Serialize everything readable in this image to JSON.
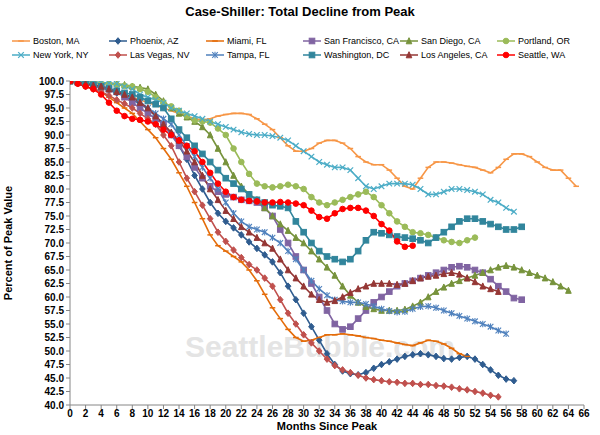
{
  "chart_data": {
    "type": "line",
    "title": "Case-Shiller: Total Decline from Peak",
    "x_label": "Months Since Peak",
    "y_label": "Percent of Peak Value",
    "annotations": [
      {
        "text": "SeattleBubble.com"
      }
    ],
    "grid": false,
    "legend": "top",
    "x": [
      0,
      1,
      2,
      3,
      4,
      5,
      6,
      7,
      8,
      9,
      10,
      11,
      12,
      13,
      14,
      15,
      16,
      17,
      18,
      19,
      20,
      21,
      22,
      23,
      24,
      25,
      26,
      27,
      28,
      29,
      30,
      31,
      32,
      33,
      34,
      35,
      36,
      37,
      38,
      39,
      40,
      41,
      42,
      43,
      44,
      45,
      46,
      47,
      48,
      49,
      50,
      51,
      52,
      53,
      54,
      55,
      56,
      57,
      58,
      59,
      60,
      61,
      62,
      63,
      64,
      65
    ],
    "xlim": [
      0,
      66
    ],
    "xticks": [
      0,
      2,
      4,
      6,
      8,
      10,
      12,
      14,
      16,
      18,
      20,
      22,
      24,
      26,
      28,
      30,
      32,
      34,
      36,
      38,
      40,
      42,
      44,
      46,
      48,
      50,
      52,
      54,
      56,
      58,
      60,
      62,
      64,
      66
    ],
    "ylim": [
      40,
      100
    ],
    "yticks": [
      {
        "value": 40,
        "label": "40.0"
      },
      42.5,
      {
        "value": 45,
        "label": "45.0"
      },
      47.5,
      {
        "value": 50,
        "label": "50.0"
      },
      52.5,
      {
        "value": 55,
        "label": "55.0"
      },
      57.5,
      {
        "value": 60,
        "label": "60.0"
      },
      62.5,
      {
        "value": 65,
        "label": "65.0"
      },
      67.5,
      {
        "value": 70,
        "label": "70.0"
      },
      72.5,
      {
        "value": 75,
        "label": "75.0"
      },
      77.5,
      {
        "value": 80,
        "label": "80.0"
      },
      82.5,
      {
        "value": 85,
        "label": "85.0"
      },
      87.5,
      {
        "value": 90,
        "label": "90.0"
      },
      92.5,
      {
        "value": 95,
        "label": "95.0"
      },
      97.5,
      {
        "value": 100,
        "label": "100.0"
      }
    ],
    "series": [
      {
        "name": "Boston, MA",
        "color": "#F79646",
        "marker": "dash",
        "values": [
          100,
          100,
          99.8,
          99.5,
          99,
          98.5,
          98,
          97.5,
          97,
          96.5,
          96,
          95.5,
          95,
          94.5,
          94,
          93.5,
          93,
          92.8,
          93,
          93.5,
          93.8,
          94,
          94,
          93.8,
          93,
          92,
          91,
          89.5,
          88,
          87,
          87,
          87.5,
          88.5,
          89,
          89,
          88.5,
          87.5,
          86,
          85,
          84.5,
          84.5,
          83.5,
          82,
          80.5,
          80,
          82,
          84,
          85,
          85,
          84.8,
          84.5,
          84.2,
          84,
          83.5,
          83,
          84,
          85.5,
          86.5,
          86.5,
          86,
          85,
          84,
          83.5,
          83.5,
          82,
          80.5
        ]
      },
      {
        "name": "Phoenix, AZ",
        "color": "#2F5C8F",
        "marker": "diamond",
        "values": [
          100,
          99.8,
          99.5,
          99.2,
          98.8,
          98.3,
          97.8,
          97.2,
          96.5,
          95.8,
          94.8,
          93.5,
          92,
          90.3,
          88,
          85.5,
          82.5,
          80,
          77.5,
          75.5,
          74,
          72.8,
          71.5,
          70.2,
          69,
          67.8,
          66.5,
          64.5,
          62,
          59.5,
          57,
          54.5,
          52,
          49.5,
          47.5,
          46.3,
          45.8,
          45.6,
          46,
          46.8,
          47.5,
          48,
          48.5,
          49,
          49.3,
          49.5,
          49.3,
          49,
          48.6,
          48.5,
          48.8,
          49,
          48.5,
          47.5,
          46.5,
          45.5,
          44.8,
          44.5,
          null,
          null,
          null,
          null,
          null,
          null,
          null,
          null
        ]
      },
      {
        "name": "Miami, FL",
        "color": "#E46C0A",
        "marker": "dash",
        "values": [
          100,
          99.5,
          99,
          98.5,
          98,
          97,
          96,
          95,
          94,
          92.5,
          91,
          89.5,
          87.5,
          85.5,
          83,
          80.5,
          77.5,
          74.5,
          71.5,
          69.5,
          68.5,
          67.5,
          66.5,
          65,
          63,
          60.5,
          58,
          56,
          54,
          52.5,
          51.8,
          52,
          52.5,
          53,
          53,
          53.2,
          53,
          52.8,
          52.5,
          52.3,
          52,
          51.8,
          51.5,
          51.2,
          51,
          51.5,
          52,
          51.8,
          51.3,
          50.5,
          49.5,
          49,
          null,
          null,
          null,
          null,
          null,
          null,
          null,
          null,
          null,
          null,
          null,
          null,
          null,
          null
        ]
      },
      {
        "name": "San Francisco, CA",
        "color": "#8064A2",
        "marker": "square",
        "values": [
          100,
          99.8,
          99.5,
          99,
          98.8,
          98.5,
          98,
          97,
          96,
          95,
          94,
          93,
          92,
          90,
          88,
          86,
          84,
          82,
          80.5,
          79.5,
          79,
          78.5,
          78,
          77.8,
          77.5,
          76.5,
          75,
          72.5,
          70,
          67.5,
          65,
          62.5,
          60,
          57.5,
          55,
          54,
          54.5,
          56,
          57.5,
          59,
          60,
          61,
          62,
          62.5,
          63,
          63.5,
          64,
          64.5,
          65,
          65.5,
          65.7,
          65.5,
          65,
          64.5,
          63.3,
          62,
          61,
          59.8,
          59.5,
          null,
          null,
          null,
          null,
          null,
          null,
          null
        ]
      },
      {
        "name": "San Diego, CA",
        "color": "#77933C",
        "marker": "triangle",
        "values": [
          100,
          100,
          99.9,
          99.8,
          99.7,
          99.6,
          99.5,
          99.3,
          99,
          98.8,
          98.5,
          97.5,
          96.3,
          95,
          94,
          93.3,
          92.5,
          91.5,
          90,
          87.5,
          85,
          82.5,
          80.5,
          79,
          78,
          76.5,
          75,
          73.5,
          72.3,
          71,
          70,
          68.5,
          67,
          65.5,
          64,
          62,
          60.3,
          59,
          58.2,
          57.8,
          57.5,
          57.5,
          57.5,
          57.7,
          58.3,
          59,
          60,
          61,
          61.8,
          62.5,
          63,
          63.5,
          64,
          64.5,
          65,
          65.5,
          65.8,
          65.5,
          65,
          64.5,
          64,
          63.5,
          62.8,
          62,
          61.2,
          null
        ]
      },
      {
        "name": "Portland, OR",
        "color": "#9BBB59",
        "marker": "circle",
        "values": [
          100,
          100,
          99.8,
          99.7,
          99.5,
          99.4,
          99.3,
          99.1,
          99,
          98.5,
          98,
          97,
          96,
          95.3,
          94.5,
          93.5,
          92.7,
          92.5,
          92.3,
          91.2,
          90,
          87.5,
          85,
          82.8,
          81,
          80.5,
          80.3,
          80.5,
          80.8,
          80.5,
          80,
          78.5,
          77.5,
          77,
          77.5,
          78,
          78.5,
          79,
          79.5,
          78.5,
          77,
          75.5,
          74,
          73,
          72,
          71.8,
          71.5,
          71,
          70.5,
          70.2,
          70,
          70.5,
          71,
          null,
          null,
          null,
          null,
          null,
          null,
          null,
          null,
          null,
          null,
          null,
          null,
          null
        ]
      },
      {
        "name": "New York, NY",
        "color": "#4BACC6",
        "marker": "cross",
        "values": [
          100,
          100,
          100,
          99.8,
          99.7,
          99.6,
          99.5,
          99,
          98.5,
          97.5,
          97,
          96.5,
          96,
          95,
          94.5,
          94,
          93.5,
          93,
          92.5,
          92,
          91.5,
          91,
          90.5,
          90.2,
          90,
          90,
          89.8,
          89.5,
          89,
          88,
          87,
          86,
          85,
          84.5,
          84,
          84,
          83.5,
          82,
          80.5,
          80,
          80.5,
          81,
          81,
          81,
          80.8,
          80,
          79,
          79,
          79.5,
          80,
          80,
          79.8,
          79.5,
          79,
          78,
          77.5,
          76.5,
          75.8,
          null,
          null,
          null,
          null,
          null,
          null,
          null,
          null
        ]
      },
      {
        "name": "Las Vegas, NV",
        "color": "#C0504D",
        "marker": "diamond",
        "values": [
          100,
          99.5,
          99,
          98.5,
          98,
          97.3,
          96.5,
          95.8,
          95,
          94,
          93,
          92,
          90,
          88,
          85,
          82,
          79.5,
          77,
          74.5,
          72,
          70.3,
          68.7,
          67.3,
          66,
          65,
          63.5,
          62,
          59.5,
          57,
          55,
          53,
          51.5,
          50,
          48.5,
          47.3,
          46.5,
          46,
          45.5,
          45,
          44.7,
          44.5,
          44.3,
          44.2,
          44,
          44,
          43.8,
          43.8,
          43.6,
          43.5,
          43.3,
          43,
          42.8,
          42.5,
          42.2,
          41.8,
          41.5,
          null,
          null,
          null,
          null,
          null,
          null,
          null,
          null,
          null,
          null
        ]
      },
      {
        "name": "Tampa, FL",
        "color": "#4F81BD",
        "marker": "star",
        "values": [
          100,
          99.8,
          99.5,
          99.2,
          99,
          98.5,
          98,
          97.5,
          97,
          96,
          95,
          94,
          93,
          92,
          90,
          88,
          86,
          84,
          82,
          80,
          77.5,
          75.5,
          74,
          73,
          72.5,
          72,
          71,
          70,
          68.5,
          67,
          65,
          63,
          61.5,
          60.3,
          59.5,
          59.2,
          59,
          59,
          58.7,
          58.3,
          57.8,
          57.4,
          57.2,
          57.3,
          57.8,
          58.2,
          58.3,
          58,
          57.5,
          57,
          56.5,
          56,
          55.5,
          55,
          54.5,
          53.8,
          53.2,
          null,
          null,
          null,
          null,
          null,
          null,
          null,
          null,
          null
        ]
      },
      {
        "name": "Washington, DC",
        "color": "#31859C",
        "marker": "square",
        "values": [
          100,
          99.8,
          99.6,
          99.3,
          99,
          98.6,
          98.2,
          97.8,
          97.5,
          97,
          96.3,
          95.7,
          95,
          93,
          91,
          89.5,
          88,
          86.5,
          85,
          83.5,
          82,
          81,
          80,
          79,
          78,
          77.5,
          77,
          76.8,
          76.5,
          74,
          72,
          70,
          68.5,
          67.5,
          67,
          66.5,
          67,
          68.5,
          70.5,
          72,
          71.8,
          71.5,
          71.2,
          71,
          70.8,
          70.5,
          70,
          71,
          72,
          73,
          74,
          74.5,
          74.5,
          74,
          73.5,
          73,
          72.5,
          72.5,
          73,
          null,
          null,
          null,
          null,
          null,
          null,
          null
        ]
      },
      {
        "name": "Los Angeles, CA",
        "color": "#953735",
        "marker": "triangle",
        "values": [
          100,
          99.8,
          99.5,
          99.2,
          99,
          98.5,
          98,
          97.5,
          97,
          96,
          95,
          93.5,
          92,
          90.5,
          89,
          87,
          85,
          82.5,
          80,
          78,
          76,
          74.5,
          73,
          72,
          71,
          70,
          69,
          67,
          65,
          63.5,
          62,
          60.5,
          59.5,
          59,
          59.3,
          60,
          60.8,
          61.5,
          62,
          62.5,
          62.5,
          62.5,
          62.3,
          62.5,
          63,
          63.5,
          63.8,
          64,
          64.3,
          64.5,
          64.2,
          63.5,
          62.8,
          62,
          61.5,
          61,
          null,
          null,
          null,
          null,
          null,
          null,
          null,
          null,
          null,
          null
        ]
      },
      {
        "name": "Seattle, WA",
        "color": "#FF0000",
        "marker": "circle",
        "values": [
          100,
          99.5,
          99,
          98.5,
          97.5,
          96,
          94.5,
          93.5,
          93,
          92.8,
          92.5,
          92,
          91,
          90,
          89,
          88,
          87,
          85,
          83,
          81,
          79.5,
          78.5,
          78,
          77.8,
          77.7,
          77.5,
          77.5,
          77.6,
          77.5,
          77.3,
          77,
          76,
          74.8,
          74.5,
          75.5,
          76.3,
          76.5,
          76.5,
          76,
          75,
          73.5,
          72.3,
          70.3,
          69.3,
          69.5,
          null,
          null,
          null,
          null,
          null,
          null,
          null,
          null,
          null,
          null,
          null,
          null,
          null,
          null,
          null,
          null,
          null,
          null,
          null,
          null,
          null
        ]
      }
    ]
  }
}
